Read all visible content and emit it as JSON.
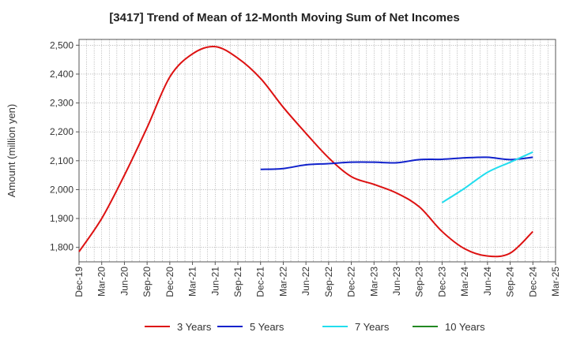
{
  "chart_data": {
    "type": "line",
    "title": "[3417]  Trend of Mean of 12-Month Moving Sum of Net Incomes",
    "xlabel": "",
    "ylabel": "Amount (million yen)",
    "ylim": [
      1750,
      2520
    ],
    "yticks": [
      1800,
      1900,
      2000,
      2100,
      2200,
      2300,
      2400,
      2500
    ],
    "ytick_labels": [
      "1,800",
      "1,900",
      "2,000",
      "2,100",
      "2,200",
      "2,300",
      "2,400",
      "2,500"
    ],
    "xticks": [
      "Dec-19",
      "Mar-20",
      "Jun-20",
      "Sep-20",
      "Dec-20",
      "Mar-21",
      "Jun-21",
      "Sep-21",
      "Dec-21",
      "Mar-22",
      "Jun-22",
      "Sep-22",
      "Dec-22",
      "Mar-23",
      "Jun-23",
      "Sep-23",
      "Dec-23",
      "Mar-24",
      "Jun-24",
      "Sep-24",
      "Dec-24",
      "Mar-25"
    ],
    "grid": true,
    "legend_position": "bottom",
    "series": [
      {
        "name": "3 Years",
        "color": "#dd1111",
        "points": [
          [
            "2019-12",
            1785
          ],
          [
            "2020-03",
            1900
          ],
          [
            "2020-06",
            2050
          ],
          [
            "2020-09",
            2215
          ],
          [
            "2020-12",
            2390
          ],
          [
            "2021-03",
            2470
          ],
          [
            "2021-06",
            2495
          ],
          [
            "2021-09",
            2455
          ],
          [
            "2021-12",
            2385
          ],
          [
            "2022-03",
            2285
          ],
          [
            "2022-06",
            2195
          ],
          [
            "2022-09",
            2110
          ],
          [
            "2022-12",
            2045
          ],
          [
            "2023-03",
            2018
          ],
          [
            "2023-06",
            1988
          ],
          [
            "2023-09",
            1940
          ],
          [
            "2023-12",
            1855
          ],
          [
            "2024-03",
            1795
          ],
          [
            "2024-06",
            1770
          ],
          [
            "2024-09",
            1780
          ],
          [
            "2024-12",
            1855
          ]
        ]
      },
      {
        "name": "5 Years",
        "color": "#1122cc",
        "points": [
          [
            "2021-12",
            2070
          ],
          [
            "2022-03",
            2073
          ],
          [
            "2022-06",
            2086
          ],
          [
            "2022-09",
            2090
          ],
          [
            "2022-12",
            2095
          ],
          [
            "2023-03",
            2095
          ],
          [
            "2023-06",
            2093
          ],
          [
            "2023-09",
            2104
          ],
          [
            "2023-12",
            2105
          ],
          [
            "2024-03",
            2110
          ],
          [
            "2024-06",
            2112
          ],
          [
            "2024-09",
            2104
          ],
          [
            "2024-12",
            2112
          ]
        ]
      },
      {
        "name": "7 Years",
        "color": "#22ddee",
        "points": [
          [
            "2023-12",
            1955
          ],
          [
            "2024-03",
            2005
          ],
          [
            "2024-06",
            2060
          ],
          [
            "2024-09",
            2095
          ],
          [
            "2024-12",
            2130
          ]
        ]
      },
      {
        "name": "10 Years",
        "color": "#228822",
        "points": []
      }
    ]
  }
}
